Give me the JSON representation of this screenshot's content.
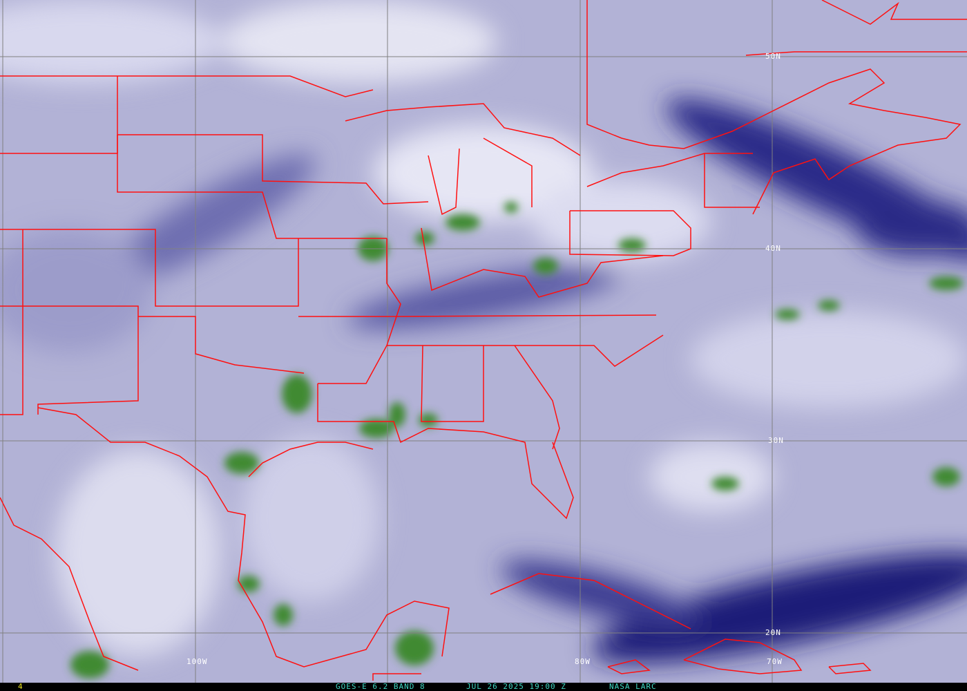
{
  "image": {
    "satellite": "GOES-E",
    "channel": "6.2 BAND 8",
    "datetime": "JUL 26 2025 19:00 Z",
    "source": "NASA LARC",
    "frame_number": "4"
  },
  "grid": {
    "lat_labels": [
      "50N",
      "40N",
      "30N",
      "20N"
    ],
    "lon_labels": [
      "100W",
      "80W",
      "70W"
    ]
  },
  "colors": {
    "borders": "#ff1010",
    "gridlines": "#808080",
    "moist_high": "#2e7d22",
    "dry_dark": "#14146e",
    "background": "#b4b4d8",
    "caption": "#3fd8c4",
    "frame_number": "#e8e020"
  }
}
